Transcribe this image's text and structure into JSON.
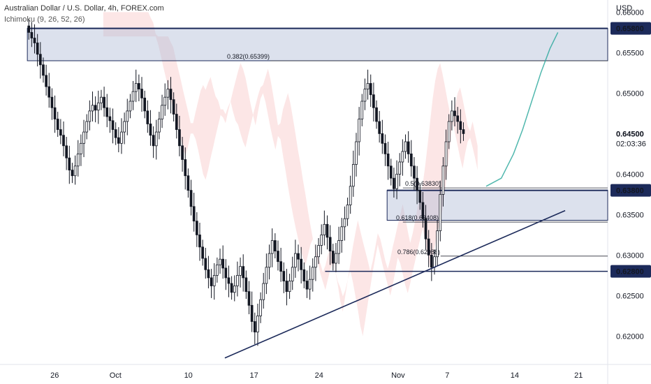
{
  "header": {
    "symbol_line": "Australian Dollar / U.S. Dollar, 4h, FOREX.com",
    "indicator_line": "Ichimoku (9, 26, 52, 26)"
  },
  "chart_data": {
    "type": "candlestick",
    "currency": "USD",
    "ylim": [
      0.6165,
      0.6615
    ],
    "y_ticks": [
      "0.66000",
      "0.65500",
      "0.65000",
      "0.64500",
      "0.64000",
      "0.63500",
      "0.63000",
      "0.62500",
      "0.62000"
    ],
    "x_ticks": [
      "26",
      "Oct",
      "10",
      "17",
      "24",
      "Nov",
      "7",
      "14",
      "21"
    ],
    "last_price": "0.64500",
    "countdown": "02:03:36",
    "price_labels": [
      {
        "value": 0.658,
        "text": "0.65800"
      },
      {
        "value": 0.638,
        "text": "0.63800"
      },
      {
        "value": 0.628,
        "text": "0.62800"
      }
    ],
    "zones": [
      {
        "top": 0.658,
        "bottom": 0.654,
        "start": 0,
        "end": 1
      },
      {
        "top": 0.638,
        "bottom": 0.6343,
        "start": 0.6,
        "end": 1
      }
    ],
    "fib_levels": [
      {
        "value": 0.65399,
        "text": "0.382(0.65399)"
      },
      {
        "value": 0.6383,
        "text": "0.5(0.63830)"
      },
      {
        "value": 0.63408,
        "text": "0.618(0.63408)"
      },
      {
        "value": 0.62988,
        "text": "0.786(0.62988)"
      }
    ],
    "support_line": 0.628,
    "trendline": {
      "from": [
        0.37,
        0.6173
      ],
      "to": [
        0.93,
        0.6355
      ]
    },
    "forecast_path": [
      [
        0.8,
        0.6385
      ],
      [
        0.825,
        0.6395
      ],
      [
        0.845,
        0.6425
      ],
      [
        0.86,
        0.6455
      ],
      [
        0.875,
        0.649
      ],
      [
        0.89,
        0.6525
      ],
      [
        0.905,
        0.6555
      ],
      [
        0.918,
        0.6575
      ]
    ],
    "close_series": [
      0.6575,
      0.6568,
      0.6562,
      0.6548,
      0.6535,
      0.6522,
      0.6508,
      0.6495,
      0.6482,
      0.6468,
      0.6455,
      0.6448,
      0.6435,
      0.642,
      0.6405,
      0.6398,
      0.641,
      0.6425,
      0.6438,
      0.6452,
      0.6465,
      0.6478,
      0.6485,
      0.6479,
      0.6488,
      0.6495,
      0.6482,
      0.6471,
      0.6466,
      0.6455,
      0.6445,
      0.6438,
      0.6452,
      0.6465,
      0.6478,
      0.649,
      0.6502,
      0.6512,
      0.6505,
      0.6494,
      0.6478,
      0.6462,
      0.6448,
      0.6435,
      0.6452,
      0.6468,
      0.6485,
      0.6495,
      0.6505,
      0.6492,
      0.6474,
      0.6455,
      0.6435,
      0.6418,
      0.6398,
      0.638,
      0.636,
      0.6342,
      0.6325,
      0.631,
      0.6296,
      0.6282,
      0.6272,
      0.6262,
      0.6275,
      0.6288,
      0.6295,
      0.6284,
      0.6272,
      0.6265,
      0.6254,
      0.6262,
      0.6275,
      0.6286,
      0.6272,
      0.6255,
      0.6238,
      0.6218,
      0.6205,
      0.6225,
      0.6245,
      0.6265,
      0.6285,
      0.6302,
      0.6318,
      0.6305,
      0.6292,
      0.628,
      0.6268,
      0.6255,
      0.6268,
      0.6285,
      0.6302,
      0.6295,
      0.6282,
      0.6268,
      0.6258,
      0.627,
      0.6285,
      0.6298,
      0.6312,
      0.6325,
      0.6338,
      0.6322,
      0.6305,
      0.629,
      0.6302,
      0.6318,
      0.6335,
      0.6345,
      0.6362,
      0.6385,
      0.6412,
      0.644,
      0.6468,
      0.649,
      0.6505,
      0.6512,
      0.6498,
      0.6482,
      0.6465,
      0.645,
      0.6438,
      0.6425,
      0.641,
      0.6395,
      0.6382,
      0.64,
      0.6415,
      0.6428,
      0.644,
      0.6425,
      0.641,
      0.6395,
      0.638,
      0.6365,
      0.6345,
      0.632,
      0.63,
      0.6285,
      0.6298,
      0.633,
      0.6375,
      0.641,
      0.644,
      0.6465,
      0.6478,
      0.6472,
      0.6465,
      0.6455,
      0.645
    ]
  }
}
